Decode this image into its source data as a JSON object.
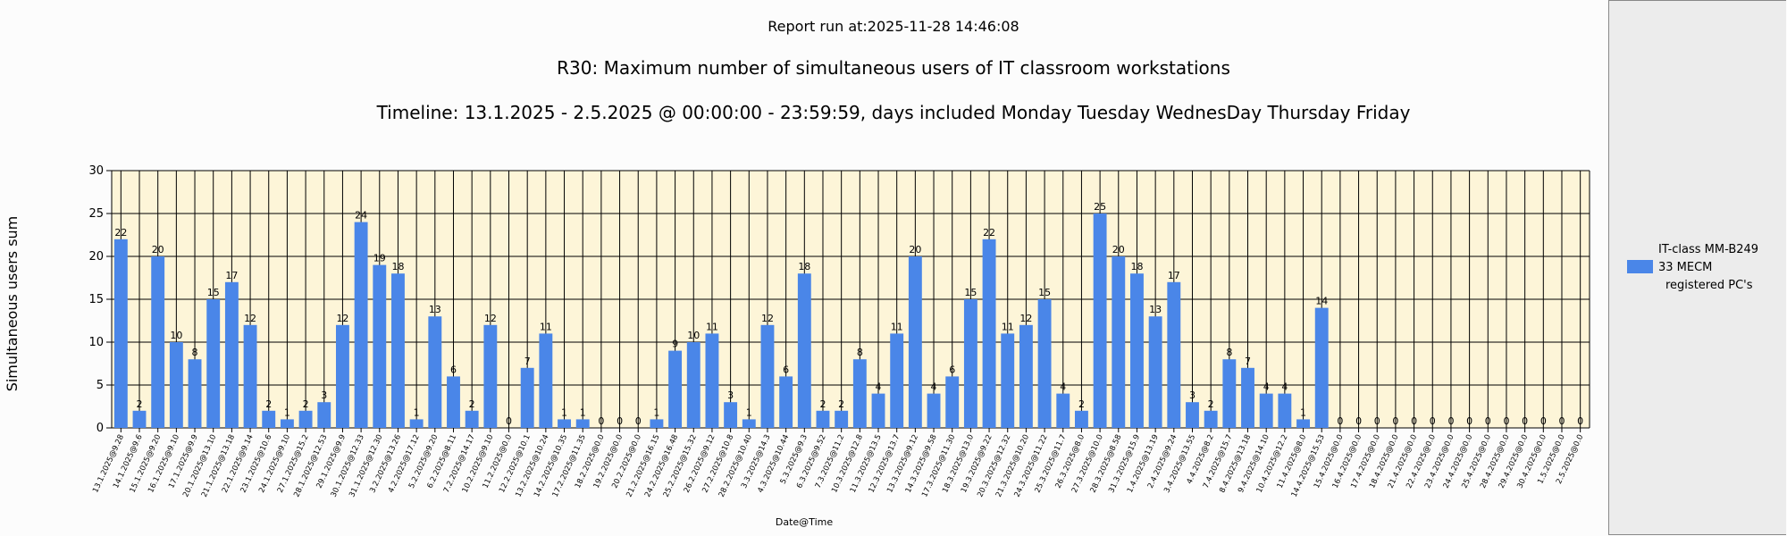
{
  "report": {
    "run_info": "Report run at:2025-11-28 14:46:08",
    "title": "R30: Maximum number of simultaneous users of IT classroom workstations",
    "subtitle": "Timeline: 13.1.2025  - 2.5.2025  @  00:00:00 -  23:59:59, days included Monday Tuesday WednesDay Thursday Friday"
  },
  "colors": {
    "bar": "#4a86e8",
    "plot_bg": "#fdf5d8",
    "grid": "#000000"
  },
  "legend": {
    "position": "right",
    "entries": [
      "IT-class MM-B249",
      "33 MECM",
      "registered PC's"
    ]
  },
  "chart_data": {
    "type": "bar",
    "xlabel": "Date@Time",
    "ylabel": "Simultaneous users sum",
    "ylim": [
      0,
      30
    ],
    "yticks": [
      0,
      5,
      10,
      15,
      20,
      25,
      30
    ],
    "grid": true,
    "categories": [
      "13.1.2025@9.28",
      "14.1.2025@9.6",
      "15.1.2025@9.20",
      "16.1.2025@9.10",
      "17.1.2025@9.9",
      "20.1.2025@13.10",
      "21.1.2025@13.18",
      "22.1.2025@9.14",
      "23.1.2025@10.6",
      "24.1.2025@9.10",
      "27.1.2025@15.2",
      "28.1.2025@12.53",
      "29.1.2025@9.9",
      "30.1.2025@12.33",
      "31.1.2025@12.30",
      "3.2.2025@13.26",
      "4.2.2025@17.12",
      "5.2.2025@9.20",
      "6.2.2025@8.11",
      "7.2.2025@14.17",
      "10.2.2025@9.10",
      "11.2.2025@0.0",
      "12.2.2025@10.1",
      "13.2.2025@10.24",
      "14.2.2025@10.35",
      "17.2.2025@11.35",
      "18.2.2025@0.0",
      "19.2.2025@0.0",
      "20.2.2025@0.0",
      "21.2.2025@16.15",
      "24.2.2025@16.48",
      "25.2.2025@15.32",
      "26.2.2025@9.12",
      "27.2.2025@10.8",
      "28.2.2025@10.40",
      "3.3.2025@14.3",
      "4.3.2025@10.44",
      "5.3.2025@9.3",
      "6.3.2025@9.52",
      "7.3.2025@11.2",
      "10.3.2025@12.8",
      "11.3.2025@13.5",
      "12.3.2025@13.7",
      "13.3.2025@9.12",
      "14.3.2025@9.58",
      "17.3.2025@11.30",
      "18.3.2025@13.0",
      "19.3.2025@9.22",
      "20.3.2025@12.32",
      "21.3.2025@10.20",
      "24.3.2025@11.22",
      "25.3.2025@11.7",
      "26.3.2025@8.0",
      "27.3.2025@10.0",
      "28.3.2025@8.58",
      "31.3.2025@15.9",
      "1.4.2025@13.19",
      "2.4.2025@9.24",
      "3.4.2025@13.55",
      "4.4.2025@8.2",
      "7.4.2025@15.7",
      "8.4.2025@13.18",
      "9.4.2025@14.10",
      "10.4.2025@12.2",
      "11.4.2025@8.0",
      "14.4.2025@15.53",
      "15.4.2025@0.0",
      "16.4.2025@0.0",
      "17.4.2025@0.0",
      "18.4.2025@0.0",
      "21.4.2025@0.0",
      "22.4.2025@0.0",
      "23.4.2025@0.0",
      "24.4.2025@0.0",
      "25.4.2025@0.0",
      "28.4.2025@0.0",
      "29.4.2025@0.0",
      "30.4.2025@0.0",
      "1.5.2025@0.0",
      "2.5.2025@0.0"
    ],
    "values": [
      22,
      2,
      20,
      10,
      8,
      15,
      17,
      12,
      2,
      1,
      2,
      3,
      12,
      24,
      19,
      18,
      1,
      13,
      6,
      2,
      12,
      0,
      7,
      11,
      1,
      1,
      0,
      0,
      0,
      1,
      9,
      10,
      11,
      3,
      1,
      12,
      6,
      18,
      2,
      2,
      8,
      4,
      11,
      20,
      4,
      6,
      15,
      22,
      11,
      12,
      15,
      4,
      2,
      25,
      20,
      18,
      13,
      17,
      3,
      2,
      8,
      7,
      4,
      4,
      1,
      14,
      0,
      0,
      0,
      0,
      0,
      0,
      0,
      0,
      0,
      0,
      0,
      0,
      0,
      0
    ],
    "series": [
      {
        "name": "IT-class MM-B249 33 MECM registered PC's"
      }
    ]
  }
}
